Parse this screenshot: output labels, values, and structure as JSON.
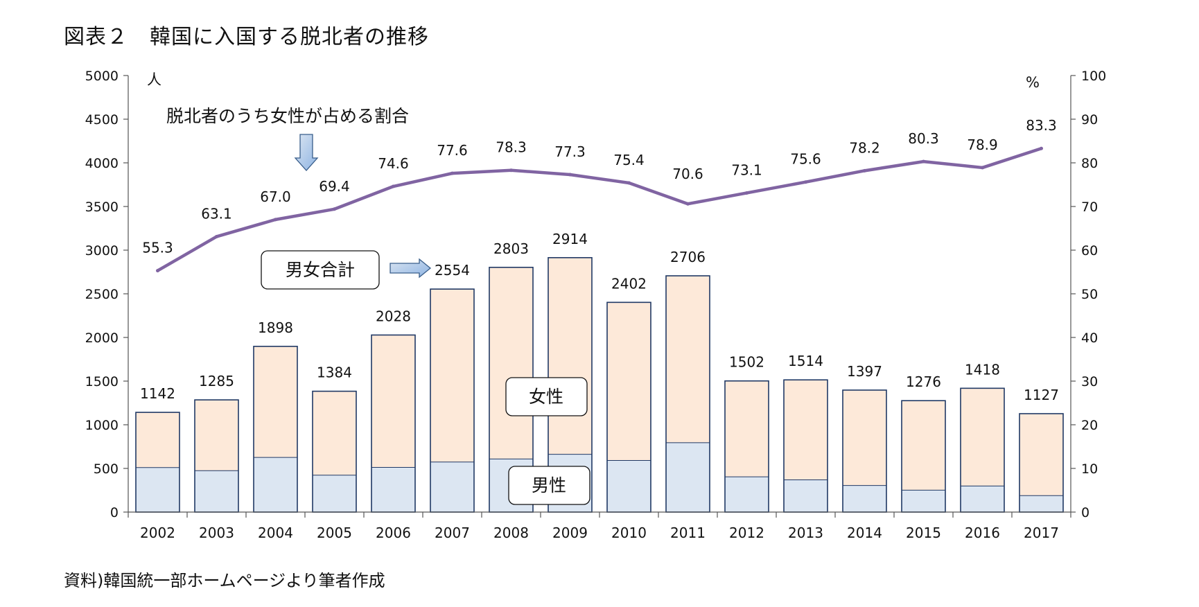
{
  "title": "図表２　韓国に入国する脱北者の推移",
  "source": "資料)韓国統一部ホームページより筆者作成",
  "chart_data": {
    "type": "bar",
    "stacked": true,
    "categories": [
      "2002",
      "2003",
      "2004",
      "2005",
      "2006",
      "2007",
      "2008",
      "2009",
      "2010",
      "2011",
      "2012",
      "2013",
      "2014",
      "2015",
      "2016",
      "2017"
    ],
    "series": [
      {
        "name": "男性",
        "axis": "left",
        "color": "#dce6f2",
        "values": [
          510,
          474,
          626,
          423,
          512,
          573,
          608,
          662,
          591,
          795,
          404,
          369,
          305,
          251,
          299,
          188
        ]
      },
      {
        "name": "女性",
        "axis": "left",
        "color": "#fde9d9",
        "values": [
          632,
          811,
          1272,
          961,
          1516,
          1981,
          2195,
          2252,
          1811,
          1911,
          1098,
          1145,
          1092,
          1025,
          1119,
          939
        ]
      }
    ],
    "totals": [
      1142,
      1285,
      1898,
      1384,
      2028,
      2554,
      2803,
      2914,
      2402,
      2706,
      1502,
      1514,
      1397,
      1276,
      1418,
      1127
    ],
    "total_labels": [
      "1142",
      "1285",
      "1898",
      "1384",
      "2028",
      "2554",
      "2803",
      "2914",
      "2402",
      "2706",
      "1502",
      "1514",
      "1397",
      "1276",
      "1418",
      "1127"
    ],
    "line": {
      "name": "脱北者のうち女性が占める割合",
      "axis": "right",
      "color": "#8064a2",
      "values": [
        55.3,
        63.1,
        67.0,
        69.4,
        74.6,
        77.6,
        78.3,
        77.3,
        75.4,
        70.6,
        73.1,
        75.6,
        78.2,
        80.3,
        78.9,
        83.3
      ],
      "labels": [
        "55.3",
        "63.1",
        "67.0",
        "69.4",
        "74.6",
        "77.6",
        "78.3",
        "77.3",
        "75.4",
        "70.6",
        "73.1",
        "75.6",
        "78.2",
        "80.3",
        "78.9",
        "83.3"
      ]
    },
    "y_left": {
      "unit": "人",
      "range": [
        0,
        5000
      ],
      "ticks": [
        "0",
        "500",
        "1000",
        "1500",
        "2000",
        "2500",
        "3000",
        "3500",
        "4000",
        "4500",
        "5000"
      ]
    },
    "y_right": {
      "unit": "%",
      "range": [
        0,
        100
      ],
      "ticks": [
        "0",
        "10",
        "20",
        "30",
        "40",
        "50",
        "60",
        "70",
        "80",
        "90",
        "100"
      ]
    },
    "annotations": {
      "total_box": "男女合計",
      "female_box": "女性",
      "male_box": "男性",
      "line_label": "脱北者のうち女性が占める割合"
    }
  }
}
